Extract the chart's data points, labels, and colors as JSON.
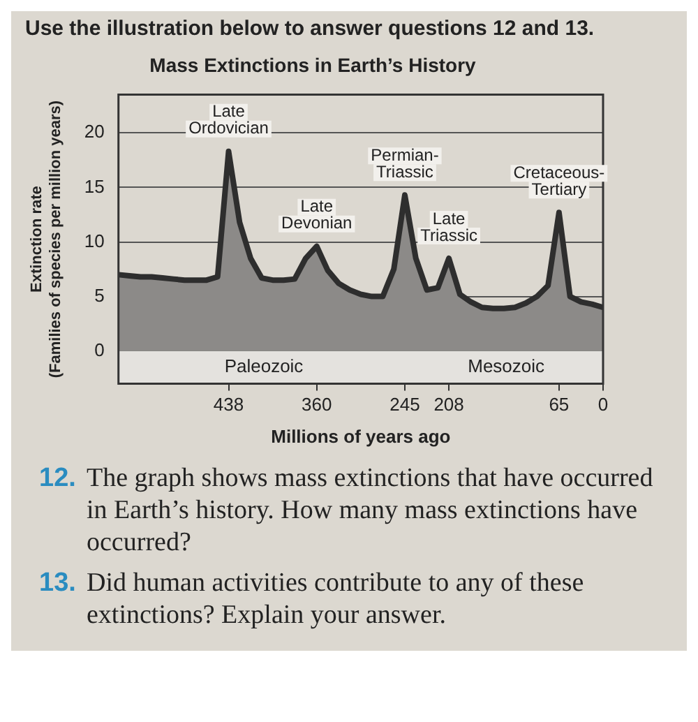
{
  "chart_data": {
    "type": "area",
    "title": "Mass Extinctions in Earth’s History",
    "xlabel": "Millions of years ago",
    "ylabel": "Extinction rate\n(Families of species per million years)",
    "categories": [
      null,
      null,
      null,
      null,
      null,
      null,
      null,
      null,
      null,
      null,
      "438",
      null,
      null,
      null,
      null,
      null,
      null,
      null,
      "360",
      null,
      null,
      null,
      null,
      null,
      null,
      null,
      "245",
      null,
      null,
      null,
      "208",
      null,
      null,
      null,
      null,
      null,
      null,
      null,
      null,
      null,
      "65",
      null,
      null,
      null,
      "0"
    ],
    "series": [
      {
        "color": "#8c8a88",
        "values": [
          7.0,
          6.9,
          6.8,
          6.8,
          6.7,
          6.6,
          6.5,
          6.5,
          6.5,
          6.8,
          18.3,
          11.8,
          8.5,
          6.7,
          6.5,
          6.5,
          6.6,
          8.5,
          9.6,
          7.4,
          6.2,
          5.6,
          5.2,
          5.0,
          5.0,
          7.5,
          14.3,
          8.5,
          5.6,
          5.8,
          8.5,
          5.2,
          4.5,
          4.0,
          3.9,
          3.9,
          4.0,
          4.4,
          5.0,
          6.0,
          12.7,
          5.0,
          4.5,
          4.3,
          4.0
        ]
      }
    ],
    "ylim": [
      -3,
      23.5
    ],
    "yticks": [
      0,
      5,
      10,
      15,
      20
    ],
    "grid": "y",
    "legend": false,
    "marker": "none",
    "bands": [
      {
        "axis": "y",
        "from": -3,
        "to": 0,
        "color": "#e4e2de"
      }
    ],
    "annotations": [
      "Use the illustration below to answer questions 12 and 13.",
      "Paleozoic",
      "Mesozoic",
      {
        "text": "Late Ordovician",
        "x": "438",
        "y": 18.3
      },
      {
        "text": "Late Devonian",
        "x": "360",
        "y": 9.6
      },
      {
        "text": "Permian-Triassic",
        "x": "245",
        "y": 14.3
      },
      {
        "text": "Late Triassic",
        "x": "208",
        "y": 8.5
      },
      {
        "text": "Cretaceous-Tertiary",
        "x": "65",
        "y": 12.7
      },
      "12. The graph shows mass extinctions that have occurred in Earth’s history. How many mass extinctions have occurred?",
      "13. Did human activities contribute to any of these extinctions? Explain your answer."
    ]
  }
}
